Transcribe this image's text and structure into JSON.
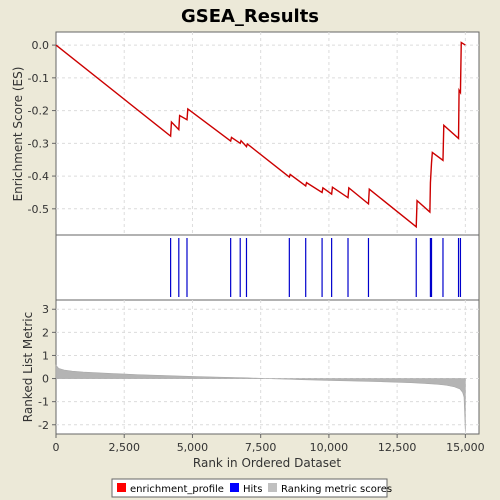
{
  "title": "GSEA_Results",
  "chart_data": {
    "type": "line",
    "title": "GSEA_Results",
    "xlabel": "Rank in Ordered Dataset",
    "xlim": [
      0,
      15500
    ],
    "xticks": [
      "0",
      "2,500",
      "5,000",
      "7,500",
      "10,000",
      "12,500",
      "15,000"
    ],
    "xtick_values": [
      0,
      2500,
      5000,
      7500,
      10000,
      12500,
      15000
    ],
    "es_panel": {
      "ylabel": "Enrichment Score (ES)",
      "ylim": [
        -0.58,
        0.04
      ],
      "yticks": [
        "0.0",
        "-0.1",
        "-0.2",
        "-0.3",
        "-0.4",
        "-0.5"
      ],
      "ytick_values": [
        0.0,
        -0.1,
        -0.2,
        -0.3,
        -0.4,
        -0.5
      ],
      "grid": true,
      "series": [
        {
          "name": "enrichment_profile",
          "color": "#cc0000",
          "x": [
            0,
            4200,
            4230,
            4500,
            4530,
            4800,
            4830,
            6400,
            6430,
            6750,
            6780,
            6980,
            7010,
            8550,
            8580,
            9150,
            9180,
            9750,
            9780,
            10100,
            10130,
            10700,
            10730,
            11450,
            11480,
            13200,
            13230,
            13700,
            13720,
            13760,
            13790,
            14180,
            14210,
            14750,
            14770,
            14820,
            14850,
            15000
          ],
          "y": [
            0.0,
            -0.278,
            -0.235,
            -0.258,
            -0.215,
            -0.228,
            -0.195,
            -0.293,
            -0.282,
            -0.3,
            -0.292,
            -0.31,
            -0.302,
            -0.403,
            -0.395,
            -0.43,
            -0.42,
            -0.45,
            -0.436,
            -0.455,
            -0.434,
            -0.466,
            -0.436,
            -0.485,
            -0.44,
            -0.555,
            -0.475,
            -0.51,
            -0.42,
            -0.36,
            -0.328,
            -0.352,
            -0.245,
            -0.285,
            -0.138,
            -0.145,
            0.008,
            0.0
          ]
        }
      ]
    },
    "hits_panel": {
      "name": "Hits",
      "color": "#0000cc",
      "positions": [
        4200,
        4500,
        4800,
        6400,
        6750,
        6980,
        8550,
        9150,
        9750,
        10100,
        10700,
        11450,
        13200,
        13720,
        13760,
        14180,
        14750,
        14820
      ]
    },
    "ranking_panel": {
      "name": "Ranking metric scores",
      "ylabel": "Ranked List Metric",
      "color": "#b4b4b4",
      "ylim": [
        -2.4,
        3.4
      ],
      "yticks": [
        "3",
        "2",
        "1",
        "0",
        "-1",
        "-2"
      ],
      "ytick_values": [
        3,
        2,
        1,
        0,
        -1,
        -2
      ],
      "grid": true,
      "x": [
        0,
        100,
        300,
        600,
        1000,
        2000,
        3000,
        4000,
        5000,
        6000,
        7000,
        7500,
        8000,
        8500,
        9000,
        10000,
        11000,
        12000,
        13000,
        13500,
        14000,
        14300,
        14600,
        14800,
        14900,
        14950,
        15000
      ],
      "y": [
        0.58,
        0.44,
        0.37,
        0.32,
        0.28,
        0.22,
        0.17,
        0.13,
        0.09,
        0.06,
        0.03,
        0.01,
        -0.01,
        -0.03,
        -0.05,
        -0.08,
        -0.11,
        -0.14,
        -0.18,
        -0.21,
        -0.25,
        -0.29,
        -0.36,
        -0.45,
        -0.6,
        -0.8,
        -2.3
      ]
    },
    "legend": {
      "placement": "bottom-center",
      "entries": [
        {
          "label": "enrichment_profile",
          "color": "#ff0000"
        },
        {
          "label": "Hits",
          "color": "#0000ff"
        },
        {
          "label": "Ranking metric scores",
          "color": "#c0c0c0"
        }
      ]
    }
  }
}
